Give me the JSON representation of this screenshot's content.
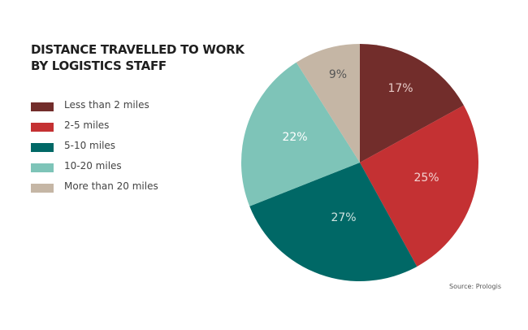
{
  "title_line1": "DISTANCE TRAVELLED TO WORK",
  "title_line2": "BY LOGISTICS STAFF",
  "legend": [
    {
      "label": "Less than 2 miles",
      "color": "#722d2b"
    },
    {
      "label": "2-5 miles",
      "color": "#c43133"
    },
    {
      "label": "5-10 miles",
      "color": "#006866"
    },
    {
      "label": "10-20 miles",
      "color": "#7ec4b8"
    },
    {
      "label": "More than 20 miles",
      "color": "#c5b6a5"
    }
  ],
  "slice_labels": [
    "17%",
    "25%",
    "27%",
    "22%",
    "9%"
  ],
  "source": "Source: Prologis",
  "chart_data": {
    "type": "pie",
    "title": "DISTANCE TRAVELLED TO WORK BY LOGISTICS STAFF",
    "categories": [
      "Less than 2 miles",
      "2-5 miles",
      "5-10 miles",
      "10-20 miles",
      "More than 20 miles"
    ],
    "values": [
      17,
      25,
      27,
      22,
      9
    ],
    "colors": [
      "#722d2b",
      "#c43133",
      "#006866",
      "#7ec4b8",
      "#c5b6a5"
    ],
    "unit": "%",
    "start_angle": "12 o'clock, clockwise",
    "legend_position": "left",
    "source": "Source: Prologis"
  }
}
